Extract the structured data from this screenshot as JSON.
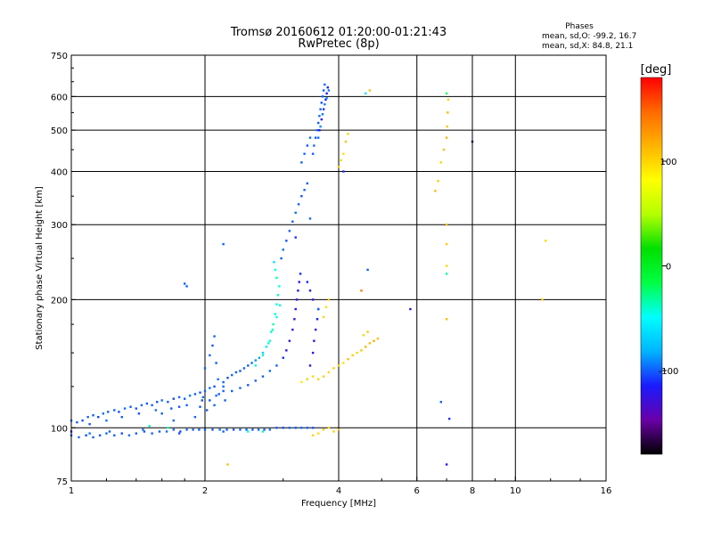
{
  "title": "Tromsø 20160612 01:20:00-01:21:43",
  "subtitle": "RwPretec (8p)",
  "stats": {
    "heading": "Phases",
    "line_o": "mean, sd,O: -99.2, 16.7",
    "line_x": "mean, sd,X:  84.8, 21.1"
  },
  "colorbar": {
    "title": "[deg]",
    "range": [
      -180,
      180
    ],
    "ticks": [
      100,
      0,
      -100
    ],
    "tick_labels": [
      "100",
      "0",
      "-100"
    ],
    "stops": [
      "#000000",
      "#6a00a8",
      "#1a1aff",
      "#00b4ff",
      "#00ffff",
      "#00ff44",
      "#00e000",
      "#b4ff00",
      "#ffff00",
      "#ffb400",
      "#ff6a00",
      "#ff0000"
    ]
  },
  "chart_data": {
    "type": "scatter",
    "xlabel": "Frequency [MHz]",
    "ylabel": "Stationary phase Virtual Height [km]",
    "xscale": "log",
    "yscale": "log",
    "xlim": [
      1,
      16
    ],
    "ylim": [
      75,
      750
    ],
    "xticks": [
      1,
      2,
      4,
      6,
      8,
      10,
      16
    ],
    "xtick_labels": [
      "1",
      "2",
      "4",
      "6",
      "8",
      "10",
      "16"
    ],
    "yticks": [
      75,
      100,
      200,
      300,
      400,
      500,
      600,
      750
    ],
    "ytick_labels": [
      "75",
      "100",
      "200",
      "300",
      "400",
      "500",
      "600",
      "750"
    ],
    "x_gridlines": [
      2,
      4,
      6,
      8,
      10
    ],
    "y_gridlines": [
      100,
      200,
      300,
      400,
      500,
      600
    ],
    "points": [
      [
        1.0,
        104,
        -95
      ],
      [
        1.03,
        103,
        -100
      ],
      [
        1.06,
        104,
        -102
      ],
      [
        1.09,
        106,
        -98
      ],
      [
        1.12,
        107,
        -100
      ],
      [
        1.15,
        106,
        -105
      ],
      [
        1.18,
        108,
        -97
      ],
      [
        1.21,
        109,
        -101
      ],
      [
        1.25,
        110,
        -99
      ],
      [
        1.28,
        109,
        -104
      ],
      [
        1.32,
        111,
        -96
      ],
      [
        1.36,
        112,
        -100
      ],
      [
        1.4,
        111,
        -102
      ],
      [
        1.44,
        113,
        -98
      ],
      [
        1.48,
        114,
        -101
      ],
      [
        1.52,
        113,
        -99
      ],
      [
        1.56,
        115,
        -103
      ],
      [
        1.6,
        116,
        -97
      ],
      [
        1.65,
        115,
        -100
      ],
      [
        1.7,
        117,
        -105
      ],
      [
        1.75,
        118,
        -98
      ],
      [
        1.8,
        117,
        -101
      ],
      [
        1.85,
        119,
        -95
      ],
      [
        1.9,
        120,
        -100
      ],
      [
        1.95,
        121,
        -102
      ],
      [
        2.0,
        122,
        -99
      ],
      [
        2.05,
        124,
        -97
      ],
      [
        2.1,
        125,
        -103
      ],
      [
        1.1,
        102,
        -101
      ],
      [
        1.2,
        104,
        -96
      ],
      [
        1.3,
        106,
        -100
      ],
      [
        1.42,
        108,
        -104
      ],
      [
        1.55,
        110,
        -97
      ],
      [
        1.68,
        111,
        -100
      ],
      [
        1.82,
        113,
        -98
      ],
      [
        1.97,
        116,
        -102
      ],
      [
        2.12,
        119,
        -95
      ],
      [
        2.2,
        122,
        -99
      ],
      [
        1.0,
        96,
        -100
      ],
      [
        1.04,
        95,
        -97
      ],
      [
        1.08,
        96,
        -103
      ],
      [
        1.12,
        95,
        -99
      ],
      [
        1.16,
        96,
        -101
      ],
      [
        1.2,
        97,
        -98
      ],
      [
        1.25,
        96,
        -100
      ],
      [
        1.3,
        97,
        -104
      ],
      [
        1.35,
        96,
        -96
      ],
      [
        1.4,
        97,
        -100
      ],
      [
        1.46,
        98,
        -102
      ],
      [
        1.52,
        97,
        -99
      ],
      [
        1.58,
        98,
        -101
      ],
      [
        1.64,
        98,
        -97
      ],
      [
        1.7,
        99,
        -100
      ],
      [
        1.76,
        98,
        -103
      ],
      [
        1.82,
        99,
        -98
      ],
      [
        1.88,
        99,
        -100
      ],
      [
        1.94,
        99,
        -102
      ],
      [
        2.0,
        99,
        -99
      ],
      [
        2.08,
        99,
        -101
      ],
      [
        2.16,
        99,
        -97
      ],
      [
        2.24,
        99,
        -100
      ],
      [
        2.32,
        99,
        -104
      ],
      [
        2.4,
        99,
        -98
      ],
      [
        2.48,
        99,
        -100
      ],
      [
        2.56,
        99,
        -102
      ],
      [
        2.64,
        99,
        -99
      ],
      [
        2.72,
        99,
        -101
      ],
      [
        2.8,
        99,
        -97
      ],
      [
        2.9,
        100,
        -100
      ],
      [
        3.0,
        100,
        -103
      ],
      [
        3.1,
        100,
        -99
      ],
      [
        3.2,
        100,
        -101
      ],
      [
        3.3,
        100,
        -98
      ],
      [
        3.4,
        100,
        -100
      ],
      [
        3.5,
        100,
        -102
      ],
      [
        1.5,
        101,
        -40
      ],
      [
        1.65,
        100,
        -35
      ],
      [
        2.5,
        98,
        -45
      ],
      [
        2.7,
        98,
        -38
      ],
      [
        1.0,
        98,
        -110
      ],
      [
        1.1,
        97,
        -95
      ],
      [
        1.22,
        98,
        -100
      ],
      [
        1.45,
        99,
        -98
      ],
      [
        1.75,
        97,
        -102
      ],
      [
        2.2,
        98,
        -99
      ],
      [
        1.6,
        108,
        -100
      ],
      [
        1.7,
        104,
        -98
      ],
      [
        1.75,
        112,
        -102
      ],
      [
        1.9,
        106,
        -99
      ],
      [
        1.95,
        112,
        -101
      ],
      [
        1.98,
        118,
        -97
      ],
      [
        2.02,
        110,
        -100
      ],
      [
        2.05,
        116,
        -103
      ],
      [
        2.1,
        113,
        -99
      ],
      [
        2.15,
        120,
        -101
      ],
      [
        2.2,
        125,
        -98
      ],
      [
        2.22,
        116,
        -100
      ],
      [
        2.0,
        138,
        -100
      ],
      [
        2.05,
        148,
        -98
      ],
      [
        2.08,
        156,
        -102
      ],
      [
        2.1,
        164,
        -99
      ],
      [
        2.12,
        142,
        -101
      ],
      [
        2.14,
        130,
        -97
      ],
      [
        2.2,
        128,
        -100
      ],
      [
        2.25,
        131,
        -104
      ],
      [
        2.3,
        133,
        -98
      ],
      [
        2.35,
        135,
        -100
      ],
      [
        2.4,
        136,
        -102
      ],
      [
        2.45,
        138,
        -99
      ],
      [
        2.5,
        140,
        -101
      ],
      [
        2.55,
        142,
        -97
      ],
      [
        2.6,
        144,
        -90
      ],
      [
        2.65,
        146,
        -85
      ],
      [
        2.7,
        150,
        -70
      ],
      [
        2.75,
        155,
        -60
      ],
      [
        2.8,
        160,
        -45
      ],
      [
        2.82,
        168,
        -40
      ],
      [
        2.85,
        175,
        -35
      ],
      [
        2.88,
        185,
        -40
      ],
      [
        2.9,
        195,
        -45
      ],
      [
        2.92,
        205,
        -38
      ],
      [
        2.94,
        215,
        -42
      ],
      [
        2.9,
        225,
        -35
      ],
      [
        2.88,
        235,
        -45
      ],
      [
        2.86,
        245,
        -60
      ],
      [
        2.3,
        122,
        -100
      ],
      [
        2.4,
        124,
        -98
      ],
      [
        2.5,
        126,
        -102
      ],
      [
        2.6,
        129,
        -99
      ],
      [
        2.7,
        132,
        -101
      ],
      [
        2.8,
        136,
        -97
      ],
      [
        2.9,
        140,
        -100
      ],
      [
        3.0,
        146,
        -110
      ],
      [
        3.05,
        152,
        -120
      ],
      [
        3.1,
        160,
        -125
      ],
      [
        3.15,
        170,
        -120
      ],
      [
        3.18,
        180,
        -122
      ],
      [
        3.2,
        190,
        -118
      ],
      [
        3.22,
        200,
        -120
      ],
      [
        3.24,
        210,
        -115
      ],
      [
        3.26,
        220,
        -118
      ],
      [
        3.28,
        230,
        -112
      ],
      [
        2.6,
        140,
        -40
      ],
      [
        2.7,
        148,
        -35
      ],
      [
        2.78,
        158,
        -42
      ],
      [
        2.84,
        170,
        -38
      ],
      [
        2.9,
        182,
        -45
      ],
      [
        2.95,
        194,
        -40
      ],
      [
        2.97,
        250,
        -100
      ],
      [
        3.0,
        262,
        -98
      ],
      [
        3.05,
        275,
        -102
      ],
      [
        3.1,
        290,
        -99
      ],
      [
        3.15,
        305,
        -101
      ],
      [
        3.2,
        320,
        -97
      ],
      [
        3.25,
        335,
        -100
      ],
      [
        3.3,
        350,
        -103
      ],
      [
        3.35,
        362,
        -99
      ],
      [
        3.4,
        375,
        -101
      ],
      [
        3.45,
        310,
        -98
      ],
      [
        3.5,
        440,
        -100
      ],
      [
        3.52,
        460,
        -98
      ],
      [
        3.55,
        480,
        -102
      ],
      [
        3.58,
        500,
        -99
      ],
      [
        3.6,
        520,
        -101
      ],
      [
        3.62,
        540,
        -97
      ],
      [
        3.64,
        560,
        -100
      ],
      [
        3.66,
        580,
        -103
      ],
      [
        3.68,
        600,
        -99
      ],
      [
        3.7,
        620,
        -101
      ],
      [
        3.72,
        640,
        -98
      ],
      [
        3.62,
        500,
        -115
      ],
      [
        3.66,
        530,
        -120
      ],
      [
        3.7,
        560,
        -110
      ],
      [
        3.74,
        590,
        -115
      ],
      [
        3.76,
        610,
        -120
      ],
      [
        3.78,
        630,
        -112
      ],
      [
        3.6,
        480,
        -95
      ],
      [
        3.64,
        510,
        -92
      ],
      [
        3.68,
        545,
        -96
      ],
      [
        3.72,
        575,
        -94
      ],
      [
        3.76,
        595,
        -90
      ],
      [
        3.8,
        620,
        -95
      ],
      [
        3.3,
        420,
        -100
      ],
      [
        3.35,
        440,
        -98
      ],
      [
        3.4,
        460,
        -102
      ],
      [
        3.45,
        480,
        -99
      ],
      [
        3.4,
        130,
        -120
      ],
      [
        3.45,
        140,
        -125
      ],
      [
        3.5,
        150,
        -118
      ],
      [
        3.52,
        160,
        -122
      ],
      [
        3.55,
        170,
        -120
      ],
      [
        3.58,
        180,
        -115
      ],
      [
        3.6,
        190,
        -118
      ],
      [
        3.5,
        200,
        -120
      ],
      [
        3.45,
        210,
        -115
      ],
      [
        3.4,
        220,
        -112
      ],
      [
        3.6,
        130,
        100
      ],
      [
        3.7,
        132,
        105
      ],
      [
        3.8,
        135,
        98
      ],
      [
        3.9,
        138,
        102
      ],
      [
        4.0,
        140,
        100
      ],
      [
        4.1,
        142,
        95
      ],
      [
        4.2,
        145,
        110
      ],
      [
        4.3,
        148,
        105
      ],
      [
        4.4,
        150,
        100
      ],
      [
        4.5,
        152,
        108
      ],
      [
        4.6,
        155,
        115
      ],
      [
        4.7,
        158,
        112
      ],
      [
        4.8,
        160,
        118
      ],
      [
        4.9,
        162,
        110
      ],
      [
        4.55,
        165,
        100
      ],
      [
        4.65,
        168,
        105
      ],
      [
        3.3,
        128,
        90
      ],
      [
        3.4,
        130,
        95
      ],
      [
        3.5,
        132,
        98
      ],
      [
        3.7,
        182,
        100
      ],
      [
        3.75,
        192,
        95
      ],
      [
        3.8,
        200,
        105
      ],
      [
        3.5,
        96,
        100
      ],
      [
        3.6,
        97,
        95
      ],
      [
        3.7,
        99,
        105
      ],
      [
        3.8,
        100,
        98
      ],
      [
        3.9,
        98,
        102
      ],
      [
        4.0,
        99,
        110
      ],
      [
        4.0,
        410,
        105
      ],
      [
        4.05,
        425,
        100
      ],
      [
        4.1,
        440,
        95
      ],
      [
        4.15,
        470,
        110
      ],
      [
        4.2,
        490,
        100
      ],
      [
        6.6,
        360,
        110
      ],
      [
        6.7,
        380,
        105
      ],
      [
        6.8,
        420,
        100
      ],
      [
        6.9,
        450,
        110
      ],
      [
        7.0,
        480,
        115
      ],
      [
        7.02,
        510,
        108
      ],
      [
        7.04,
        550,
        112
      ],
      [
        7.06,
        590,
        100
      ],
      [
        7.0,
        300,
        110
      ],
      [
        7.0,
        270,
        105
      ],
      [
        7.0,
        240,
        100
      ],
      [
        7.0,
        180,
        110
      ],
      [
        6.8,
        115,
        -100
      ],
      [
        7.0,
        610,
        -20
      ],
      [
        7.1,
        105,
        -110
      ],
      [
        7.0,
        82,
        -120
      ],
      [
        7.0,
        230,
        -30
      ],
      [
        2.2,
        270,
        -100
      ],
      [
        1.8,
        218,
        -100
      ],
      [
        1.82,
        215,
        -98
      ],
      [
        4.6,
        610,
        -60
      ],
      [
        4.7,
        620,
        110
      ],
      [
        4.5,
        210,
        140
      ],
      [
        4.65,
        235,
        -100
      ],
      [
        5.8,
        190,
        -130
      ],
      [
        8.0,
        470,
        -170
      ],
      [
        11.5,
        200,
        100
      ],
      [
        11.7,
        275,
        100
      ],
      [
        2.25,
        82,
        110
      ],
      [
        4.1,
        400,
        -110
      ],
      [
        3.6,
        190,
        -100
      ],
      [
        3.2,
        280,
        -110
      ]
    ]
  }
}
